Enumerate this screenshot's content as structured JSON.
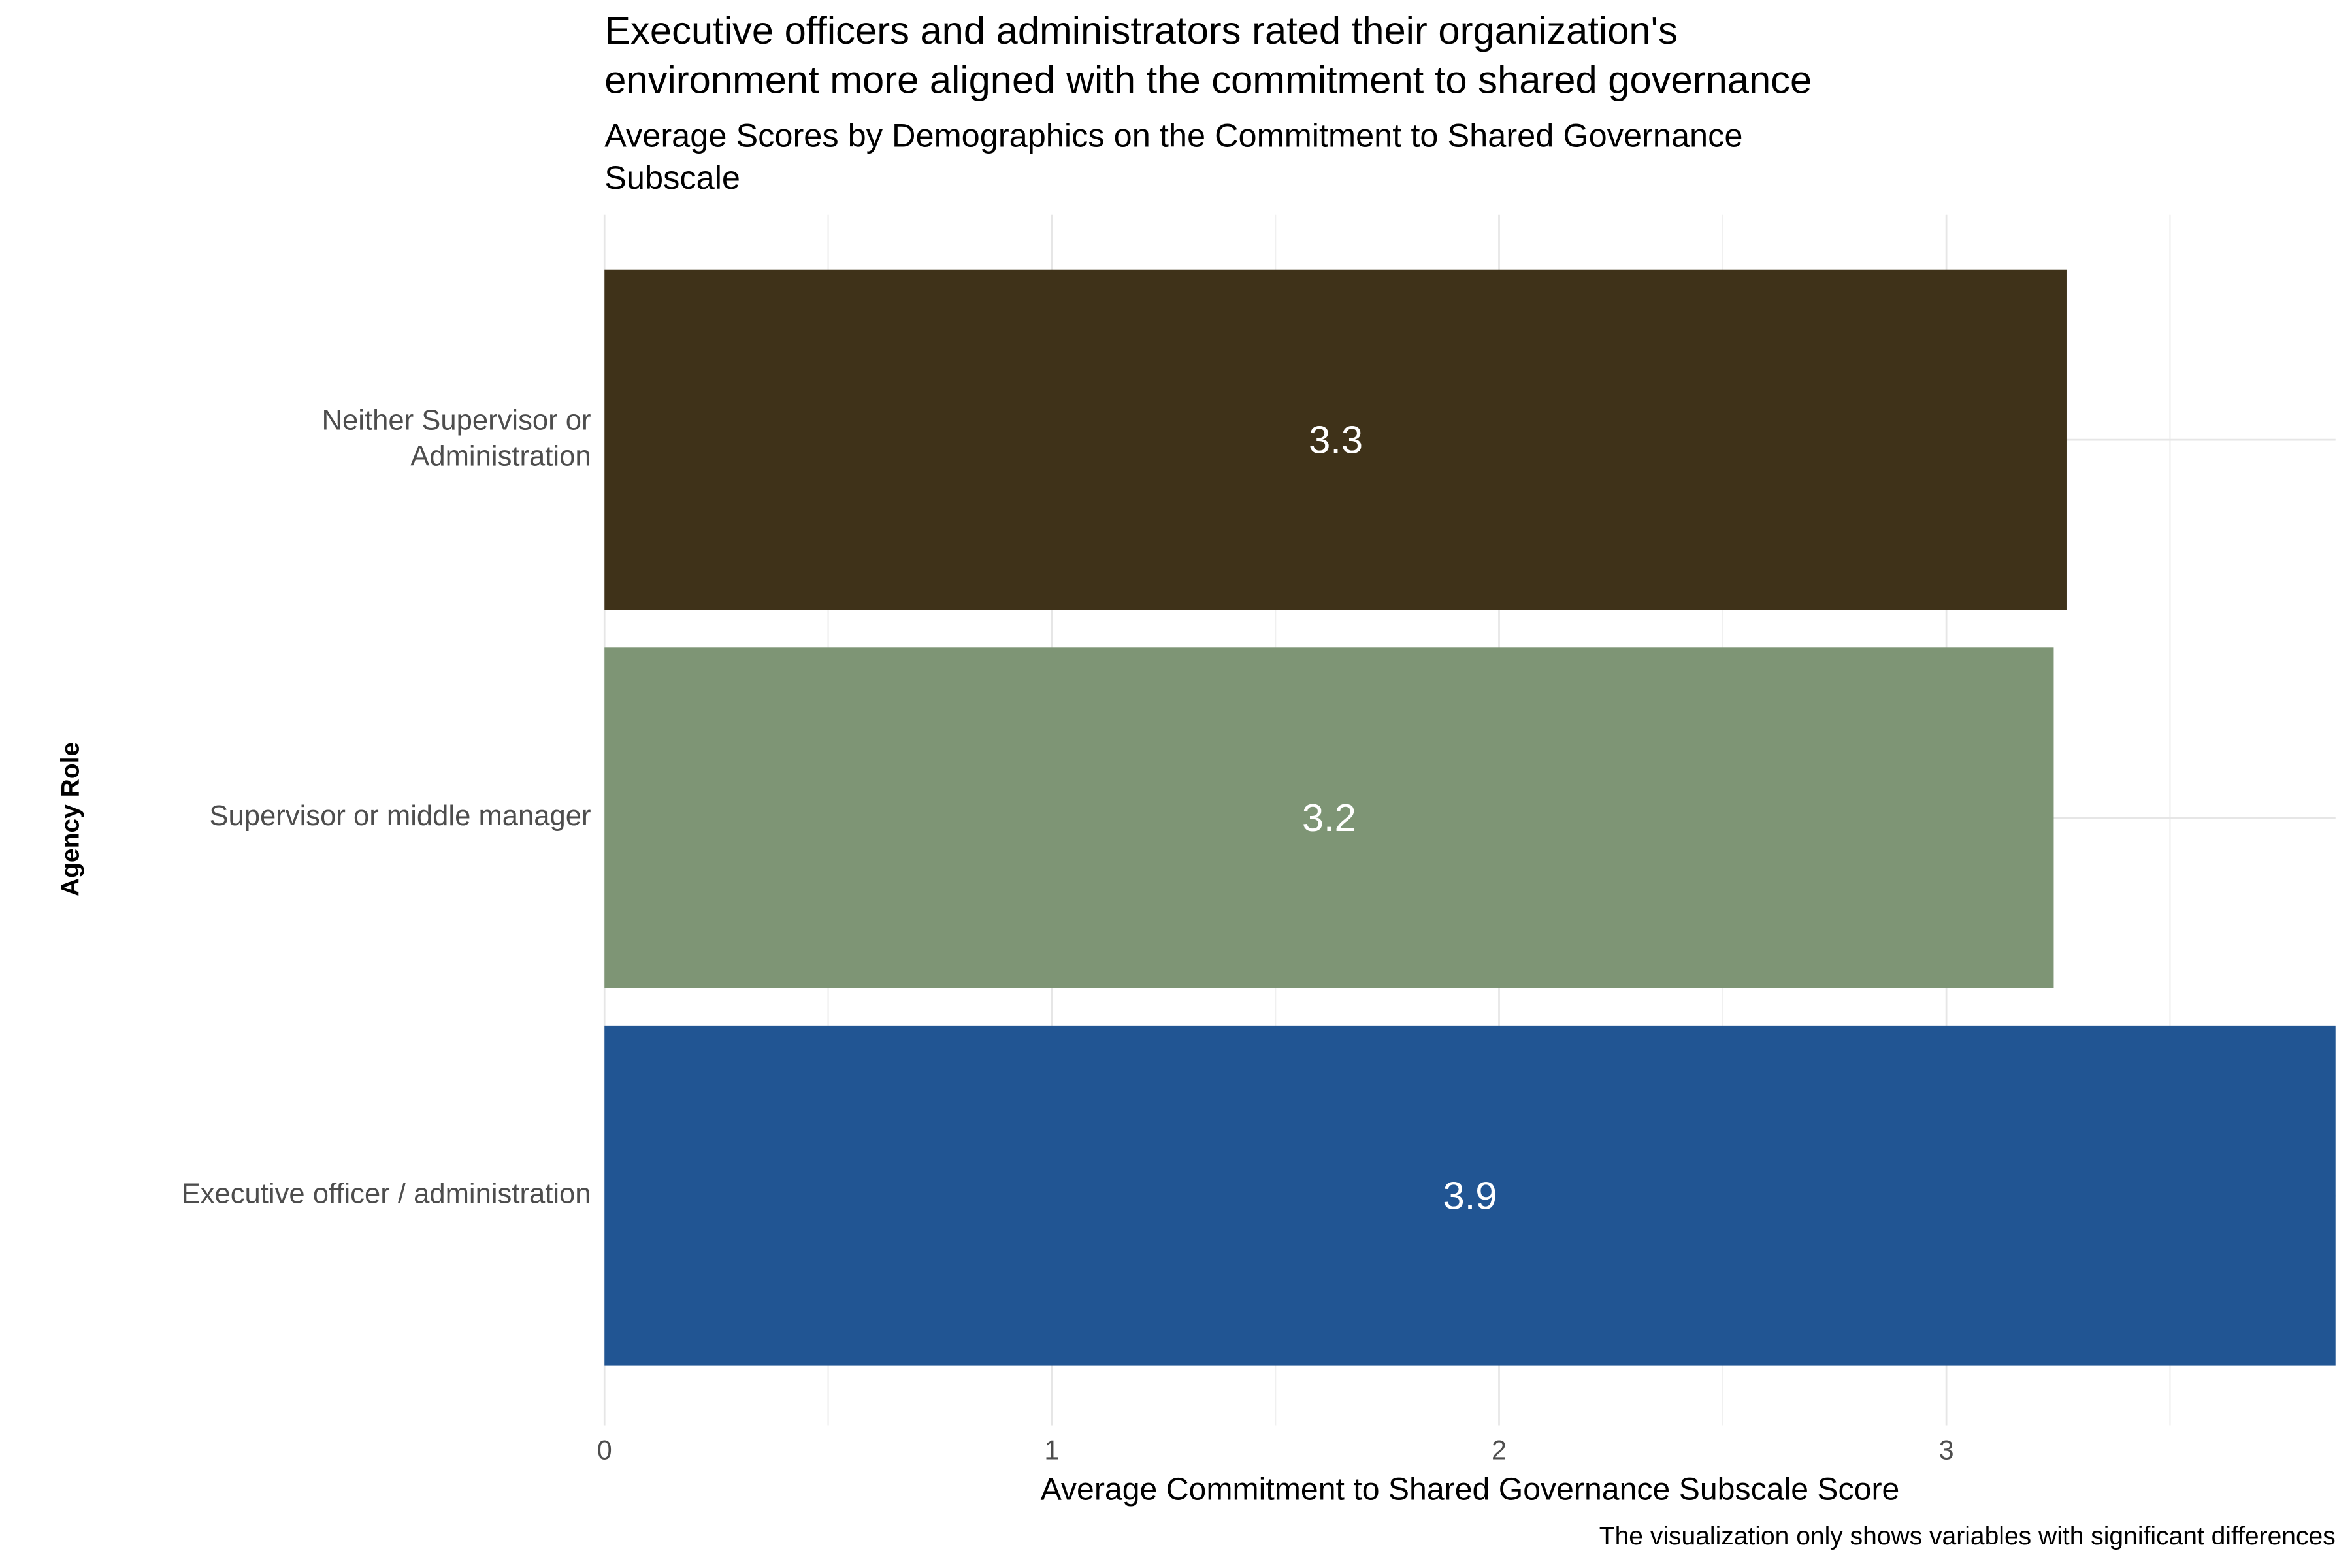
{
  "chart_data": {
    "type": "barh",
    "title": "Executive officers and administrators rated their organization's\nenvironment more aligned with the commitment to shared governance",
    "subtitle": "Average Scores by Demographics on the Commitment to Shared Governance\nSubscale",
    "x_label": "Average Commitment to Shared Governance Subscale Score",
    "y_label": "Agency Role",
    "caption": "The visualization only shows variables with significant differences",
    "categories": [
      "Neither Supervisor or\nAdministration",
      "Supervisor or middle manager",
      "Executive officer / administration"
    ],
    "values": [
      3.27,
      3.24,
      3.87
    ],
    "value_labels": [
      "3.3",
      "3.2",
      "3.9"
    ],
    "colors": [
      "#3f3219",
      "#7e9575",
      "#215593"
    ],
    "xlim": [
      0,
      3.87
    ],
    "xticks": [
      0,
      1,
      2,
      3
    ],
    "minor_grid": [
      0.5,
      1.5,
      2.5,
      3.5
    ],
    "grid": true
  }
}
